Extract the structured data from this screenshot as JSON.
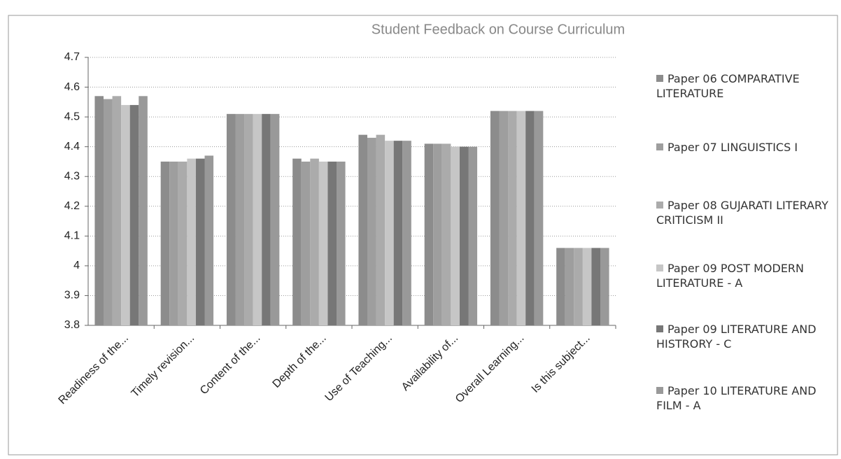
{
  "chart_data": {
    "type": "bar",
    "title": "Student Feedback on Course Curriculum",
    "categories": [
      "Readiness of the...",
      "Timely revision...",
      "Content of the...",
      "Depth of the...",
      "Use of Teaching...",
      "Availability of...",
      "Overall Learning...",
      "Is this subject..."
    ],
    "series": [
      {
        "name": "Paper 06 COMPARATIVE LITERATURE",
        "color": "#8c8c8c",
        "values": [
          4.57,
          4.35,
          4.51,
          4.36,
          4.44,
          4.41,
          4.52,
          4.06
        ]
      },
      {
        "name": "Paper 07 LINGUISTICS  I",
        "color": "#9e9e9e",
        "values": [
          4.56,
          4.35,
          4.51,
          4.35,
          4.43,
          4.41,
          4.52,
          4.06
        ]
      },
      {
        "name": "Paper 08 GUJARATI LITERARY CRITICISM  II",
        "color": "#ababab",
        "values": [
          4.57,
          4.35,
          4.51,
          4.36,
          4.44,
          4.41,
          4.52,
          4.06
        ]
      },
      {
        "name": "Paper 09 POST MODERN LITERATURE - A",
        "color": "#c6c6c6",
        "values": [
          4.54,
          4.36,
          4.51,
          4.35,
          4.42,
          4.4,
          4.52,
          4.06
        ]
      },
      {
        "name": "Paper 09 LITERATURE AND HISTRORY - C",
        "color": "#777777",
        "values": [
          4.54,
          4.36,
          4.51,
          4.35,
          4.42,
          4.4,
          4.52,
          4.06
        ]
      },
      {
        "name": "Paper 10 LITERATURE AND FILM - A",
        "color": "#999999",
        "values": [
          4.57,
          4.37,
          4.51,
          4.35,
          4.42,
          4.4,
          4.52,
          4.06
        ]
      }
    ],
    "ylim": [
      3.8,
      4.7
    ],
    "yticks": [
      3.8,
      3.9,
      4,
      4.1,
      4.2,
      4.3,
      4.4,
      4.5,
      4.6,
      4.7
    ],
    "grid": true,
    "legend": "right"
  }
}
